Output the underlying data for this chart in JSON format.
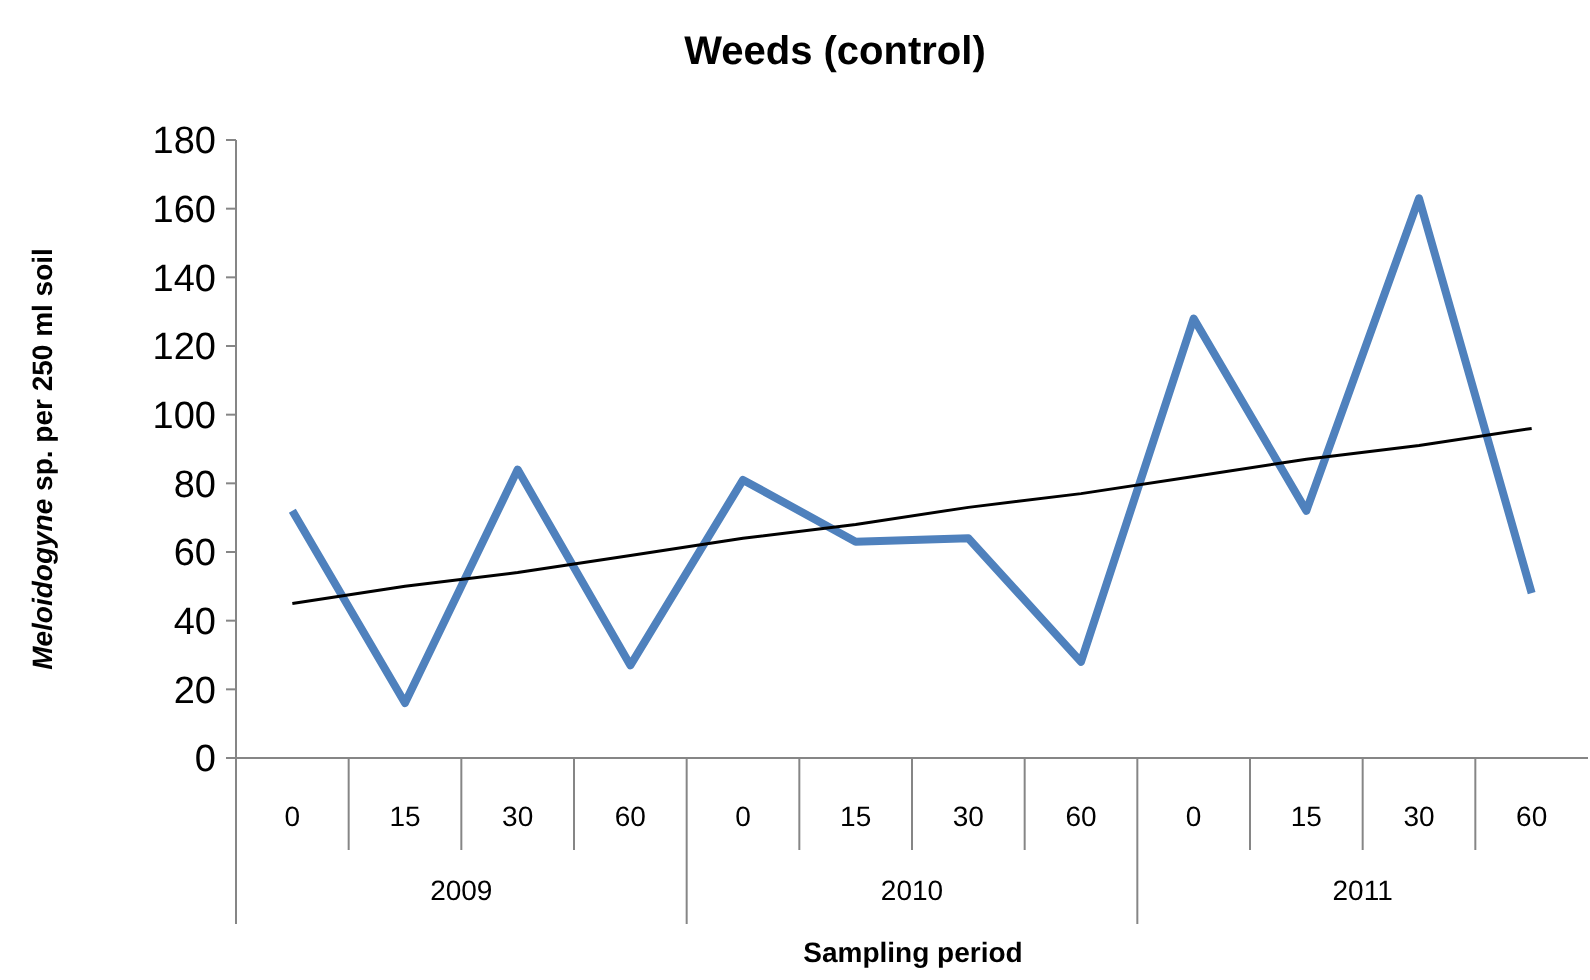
{
  "chart_data": {
    "type": "line",
    "title": "Weeds (control)",
    "xlabel": "Sampling period",
    "ylabel": "Meloidogyne sp. per 250 ml soil",
    "categories": [
      "0",
      "15",
      "30",
      "60",
      "0",
      "15",
      "30",
      "60",
      "0",
      "15",
      "30",
      "60"
    ],
    "annotations": [
      "2009",
      "2010",
      "2011"
    ],
    "series": [
      {
        "color": "#4f81bd",
        "values": [
          72,
          16,
          84,
          27,
          81,
          63,
          64,
          28,
          128,
          72,
          163,
          48
        ]
      },
      {
        "type": "line",
        "color": "#000000",
        "values": [
          45,
          50,
          54,
          59,
          64,
          68,
          73,
          77,
          82,
          87,
          91,
          96
        ]
      }
    ],
    "ylim": [
      0,
      180
    ],
    "yticks": [
      0,
      20,
      40,
      60,
      80,
      100,
      120,
      140,
      160,
      180
    ],
    "grid": false
  }
}
